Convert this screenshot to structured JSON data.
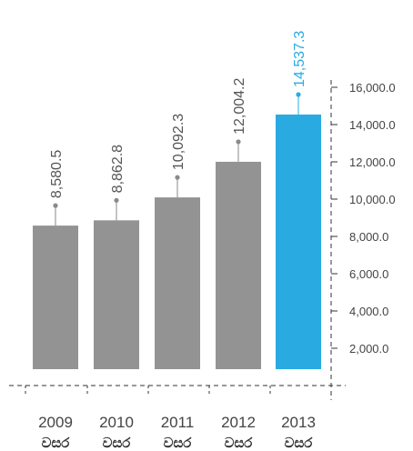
{
  "chart_data": {
    "type": "bar",
    "categories": [
      "2009",
      "2010",
      "2011",
      "2012",
      "2013"
    ],
    "category_unit": "වසර",
    "values": [
      8580.5,
      8862.8,
      10092.3,
      12004.2,
      14537.3
    ],
    "value_labels": [
      "8,580.5",
      "8,862.8",
      "10,092.3",
      "12,004.2",
      "14,537.3"
    ],
    "yticks": [
      2000,
      4000,
      6000,
      8000,
      10000,
      12000,
      14000,
      16000
    ],
    "ytick_labels": [
      "2,000.0",
      "4,000.0",
      "6,000.0",
      "8,000.0",
      "10,000.0",
      "12,000.0",
      "14,000.0",
      "16,000.0"
    ],
    "ylim": [
      0,
      16000
    ],
    "y_axis_position": "right",
    "grid": false,
    "title": "",
    "xlabel": "",
    "ylabel": "",
    "colors": {
      "bar": "#939393",
      "highlight_bar": "#29abe2",
      "value_text": "#555555",
      "highlight_text": "#29abe2",
      "leader": "#8a8a8a",
      "axis": "#333333"
    },
    "highlight_index": 4
  }
}
